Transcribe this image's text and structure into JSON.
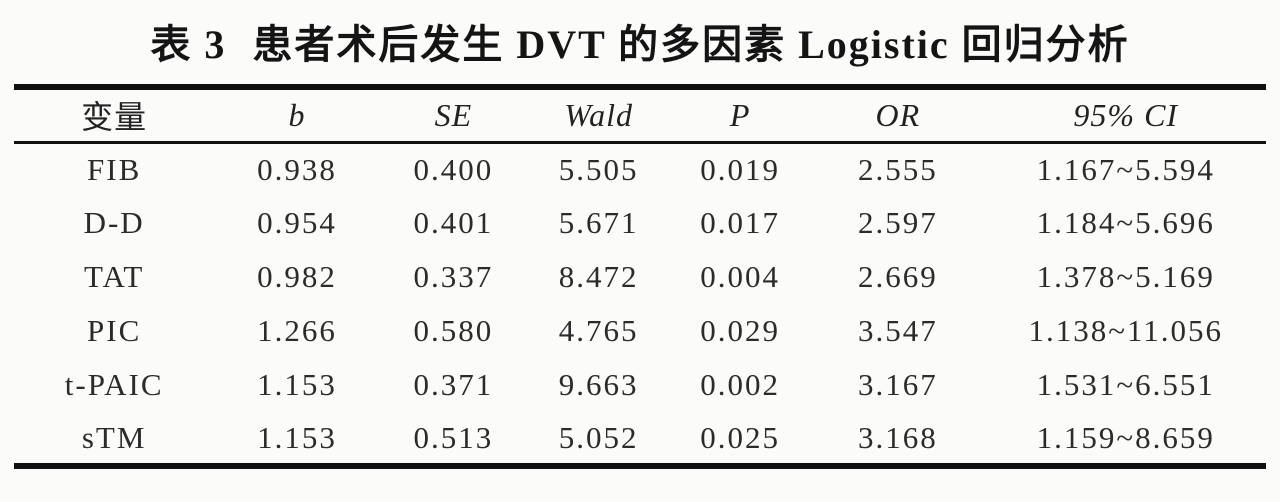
{
  "table": {
    "title_prefix": "表 3",
    "title_main": "患者术后发生 DVT 的多因素 Logistic 回归分析",
    "columns": [
      {
        "label": "变量",
        "italic": false
      },
      {
        "label": "b",
        "italic": true
      },
      {
        "label": "SE",
        "italic": true
      },
      {
        "label": "Wald",
        "italic": true
      },
      {
        "label": "P",
        "italic": true
      },
      {
        "label": "OR",
        "italic": true
      },
      {
        "label": "95% CI",
        "italic": true
      }
    ],
    "rows": [
      [
        "FIB",
        "0.938",
        "0.400",
        "5.505",
        "0.019",
        "2.555",
        "1.167~5.594"
      ],
      [
        "D-D",
        "0.954",
        "0.401",
        "5.671",
        "0.017",
        "2.597",
        "1.184~5.696"
      ],
      [
        "TAT",
        "0.982",
        "0.337",
        "8.472",
        "0.004",
        "2.669",
        "1.378~5.169"
      ],
      [
        "PIC",
        "1.266",
        "0.580",
        "4.765",
        "0.029",
        "3.547",
        "1.138~11.056"
      ],
      [
        "t-PAIC",
        "1.153",
        "0.371",
        "9.663",
        "0.002",
        "3.167",
        "1.531~6.551"
      ],
      [
        "sTM",
        "1.153",
        "0.513",
        "5.052",
        "0.025",
        "3.168",
        "1.159~8.659"
      ]
    ]
  }
}
